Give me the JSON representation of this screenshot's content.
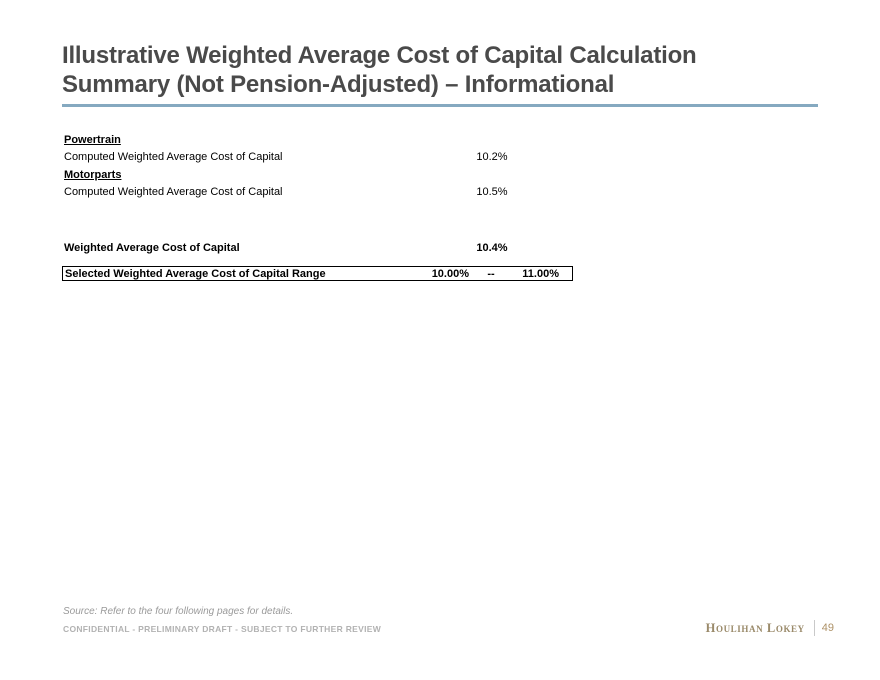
{
  "header": {
    "title_line1": "Illustrative Weighted Average Cost of Capital Calculation",
    "title_line2": "Summary (Not Pension-Adjusted) – Informational"
  },
  "table": {
    "sections": [
      {
        "heading": "Powertrain",
        "row_label": "Computed Weighted Average Cost of Capital",
        "row_value": "10.2%"
      },
      {
        "heading": "Motorparts",
        "row_label": "Computed Weighted Average Cost of Capital",
        "row_value": "10.5%"
      }
    ],
    "summary": {
      "label": "Weighted Average Cost of Capital",
      "value": "10.4%"
    },
    "selected_range": {
      "label": "Selected Weighted Average Cost of Capital Range",
      "low": "10.00%",
      "separator": "--",
      "high": "11.00%"
    }
  },
  "footer": {
    "source_note": "Source: Refer to the four following pages for details.",
    "confidentiality": "CONFIDENTIAL - PRELIMINARY DRAFT - SUBJECT TO FURTHER REVIEW",
    "brand_name": "Houlihan Lokey",
    "page_number": "49"
  },
  "colors": {
    "title_text": "#4a4a4a",
    "title_rule": "#85a9c0",
    "body_text": "#000000",
    "source_text": "#9a9a9a",
    "confidential_text": "#b2b2b2",
    "brand_gold": "#9a8a6a",
    "page_number_gold": "#ad9166"
  }
}
